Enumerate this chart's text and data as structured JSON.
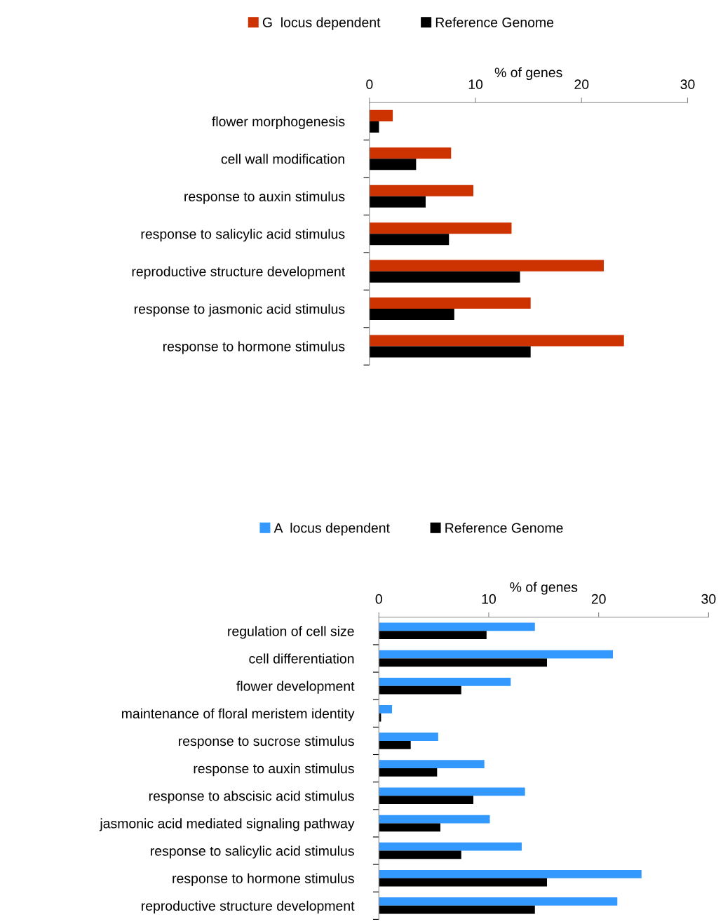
{
  "chart_data": [
    {
      "type": "bar",
      "orientation": "horizontal",
      "xlabel": "% of genes",
      "legend": "top",
      "grid": false,
      "categories": [
        "flower morphogenesis",
        "cell wall modification",
        "response to auxin stimulus",
        "response to salicylic acid stimulus",
        "reproductive structure development",
        "response to jasmonic acid stimulus",
        "response to hormone stimulus"
      ],
      "xlim": [
        0,
        30
      ],
      "xticks": [
        0,
        10,
        20,
        30
      ],
      "series": [
        {
          "name": "G  locus dependent",
          "color": "#cc3300",
          "values": [
            2.2,
            7.7,
            9.8,
            13.4,
            22.1,
            15.2,
            24.0
          ]
        },
        {
          "name": "Reference Genome",
          "color": "#000000",
          "values": [
            0.9,
            4.4,
            5.3,
            7.5,
            14.2,
            8.0,
            15.2
          ]
        }
      ]
    },
    {
      "type": "bar",
      "orientation": "horizontal",
      "xlabel": "% of genes",
      "legend": "top",
      "grid": false,
      "categories": [
        "regulation of cell size",
        "cell differentiation",
        "flower development",
        "maintenance of floral meristem identity",
        "response to sucrose stimulus",
        "response to auxin stimulus",
        "response to abscisic acid stimulus",
        "jasmonic acid mediated signaling pathway",
        "response to salicylic acid stimulus",
        "response to hormone stimulus",
        "reproductive structure development"
      ],
      "xlim": [
        0,
        30
      ],
      "xticks": [
        0,
        10,
        20,
        30
      ],
      "series": [
        {
          "name": "A  locus dependent",
          "color": "#3399ff",
          "values": [
            14.2,
            21.3,
            12.0,
            1.2,
            5.4,
            9.6,
            13.3,
            10.1,
            13.0,
            23.9,
            21.7
          ]
        },
        {
          "name": "Reference Genome",
          "color": "#000000",
          "values": [
            9.8,
            15.3,
            7.5,
            0.2,
            2.9,
            5.3,
            8.6,
            5.6,
            7.5,
            15.3,
            14.2
          ]
        }
      ]
    }
  ]
}
